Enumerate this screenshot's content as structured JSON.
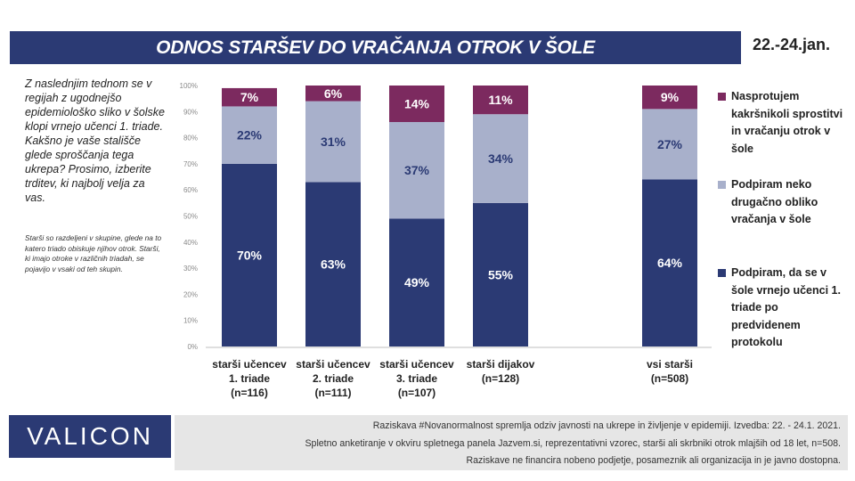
{
  "header": {
    "title": "ODNOS STARŠEV DO VRAČANJA OTROK V ŠOLE",
    "date": "22.-24.jan."
  },
  "question": "Z naslednjim tednom se v regijah z ugodnejšo epidemiološko sliko v šolske klopi vrnejo učenci 1. triade. Kakšno je vaše stališče glede sproščanja tega ukrepa? Prosimo, izberite trditev, ki najbolj velja za vas.",
  "note": "Starši so razdeljeni v skupine, glede na to katero triado obiskuje njihov otrok. Starši, ki imajo otroke v različnih triadah, se pojavijo v vsaki od teh skupin.",
  "legend": [
    {
      "label": "Nasprotujem kakršnikoli sprostitvi in vračanju otrok v šole",
      "color": "#7c2a5f"
    },
    {
      "label": "Podpiram neko drugačno obliko vračanja v šole",
      "color": "#a8b0cb"
    },
    {
      "label": "Podpiram, da se v šole vrnejo učenci 1. triade po predvidenem protokolu",
      "color": "#2b3a74"
    }
  ],
  "chart_data": {
    "type": "bar",
    "stacked": true,
    "normalized": true,
    "ylim": [
      0,
      100
    ],
    "yticks": [
      "0%",
      "10%",
      "20%",
      "30%",
      "40%",
      "50%",
      "60%",
      "70%",
      "80%",
      "90%",
      "100%"
    ],
    "categories": [
      [
        "starši učencev",
        "1. triade",
        "(n=116)"
      ],
      [
        "starši učencev",
        "2. triade",
        "(n=111)"
      ],
      [
        "starši učencev",
        "3. triade",
        "(n=107)"
      ],
      [
        "starši dijakov",
        "(n=128)"
      ],
      [
        "vsi starši",
        "(n=508)"
      ]
    ],
    "series": [
      {
        "name": "Podpiram, da se v šole vrnejo učenci 1. triade po predvidenem protokolu",
        "color": "#2b3a74",
        "label_color": "#ffffff",
        "values": [
          70,
          63,
          49,
          55,
          64
        ]
      },
      {
        "name": "Podpiram neko drugačno obliko vračanja v šole",
        "color": "#a8b0cb",
        "label_color": "#2b3a74",
        "values": [
          22,
          31,
          37,
          34,
          27
        ]
      },
      {
        "name": "Nasprotujem kakršnikoli sprostitvi in vračanju otrok v šole",
        "color": "#7c2a5f",
        "label_color": "#ffffff",
        "values": [
          7,
          6,
          14,
          11,
          9
        ]
      }
    ]
  },
  "footer": {
    "logo": "VALICON",
    "lines": [
      "Raziskava #Novanormalnost spremlja odziv javnosti na ukrepe in življenje v epidemiji. Izvedba: 22. - 24.1. 2021.",
      "Spletno anketiranje v okviru spletnega panela Jazvem.si, reprezentativni vzorec, starši ali skrbniki otrok mlajših od 18 let, n=508.",
      "Raziskave ne financira nobeno podjetje, posameznik ali organizacija in je javno dostopna."
    ]
  }
}
